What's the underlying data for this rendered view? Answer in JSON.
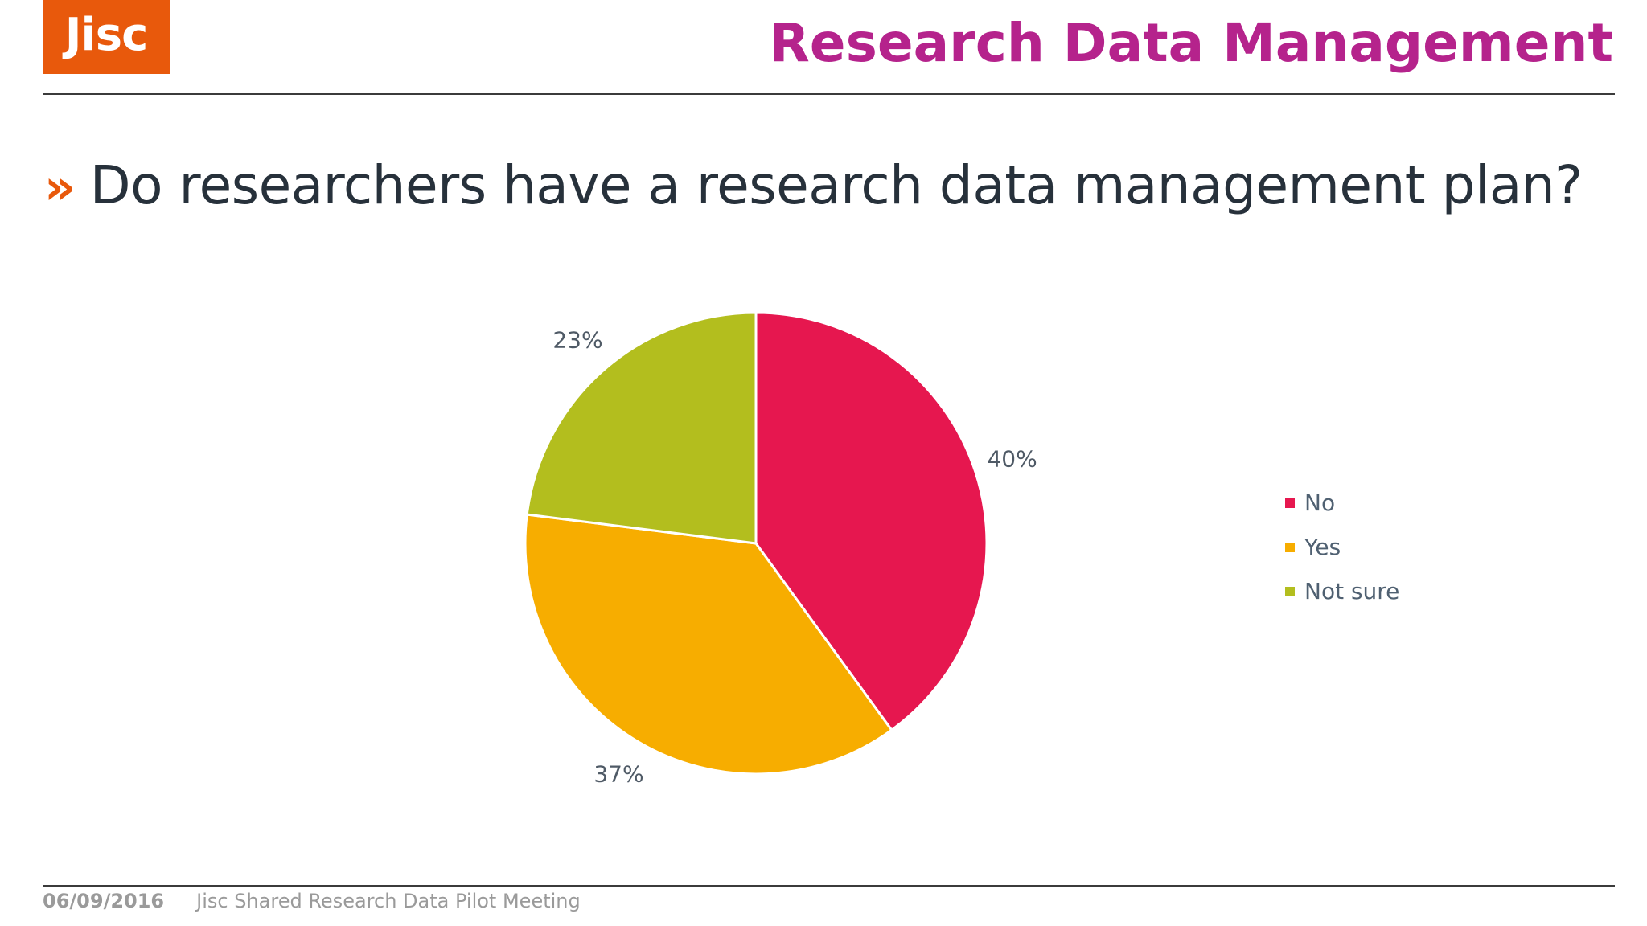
{
  "brand": {
    "logo_text": "Jisc",
    "logo_color": "#e8590c"
  },
  "header": {
    "title": "Research Data Management",
    "title_color": "#b5238c"
  },
  "question": {
    "bullet": "»",
    "text": "Do researchers have a research data management plan?"
  },
  "chart_data": {
    "type": "pie",
    "unit": "%",
    "slices": [
      {
        "name": "No",
        "value": 40,
        "label": "40%",
        "color": "#e6174f"
      },
      {
        "name": "Yes",
        "value": 37,
        "label": "37%",
        "color": "#f7ad00"
      },
      {
        "name": "Not sure",
        "value": 23,
        "label": "23%",
        "color": "#b3be1e"
      }
    ],
    "legend_position": "right"
  },
  "footer": {
    "date": "06/09/2016",
    "meeting": "Jisc Shared Research Data Pilot Meeting"
  }
}
